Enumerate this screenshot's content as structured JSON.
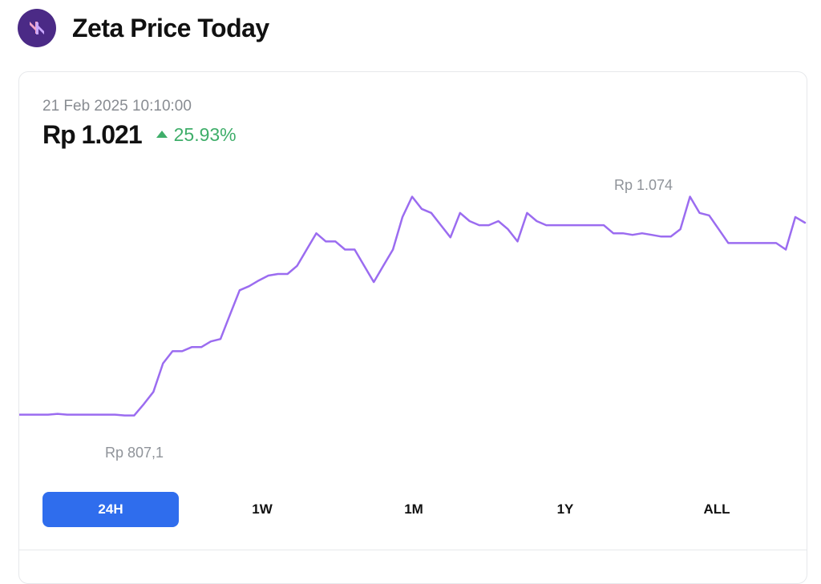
{
  "header": {
    "title": "Zeta Price Today",
    "logo_icon": "zeta-logo-icon",
    "logo_color": "#4b2a86"
  },
  "price_panel": {
    "timestamp": "21 Feb 2025 10:10:00",
    "price": "Rp 1.021",
    "change": "25.93%",
    "change_direction": "up",
    "change_color": "#3fae6a"
  },
  "chart_data": {
    "type": "line",
    "line_color": "#9b6cf0",
    "high_label": "Rp 1.074",
    "low_label": "Rp 807,1",
    "ylim": [
      780,
      1110
    ],
    "values": [
      807,
      807,
      807,
      807,
      808,
      807,
      807,
      807,
      807,
      807,
      807,
      806,
      806,
      820,
      835,
      870,
      885,
      885,
      890,
      890,
      897,
      900,
      930,
      960,
      965,
      972,
      978,
      980,
      980,
      990,
      1010,
      1030,
      1020,
      1020,
      1010,
      1010,
      990,
      970,
      990,
      1010,
      1050,
      1075,
      1060,
      1055,
      1040,
      1025,
      1055,
      1045,
      1040,
      1040,
      1045,
      1035,
      1020,
      1055,
      1045,
      1040,
      1040,
      1040,
      1040,
      1040,
      1040,
      1040,
      1030,
      1030,
      1028,
      1030,
      1028,
      1026,
      1026,
      1035,
      1075,
      1055,
      1052,
      1035,
      1018,
      1018,
      1018,
      1018,
      1018,
      1018,
      1010,
      1050,
      1043
    ],
    "timeframes": [
      "24H",
      "1W",
      "1M",
      "1Y",
      "ALL"
    ],
    "selected_timeframe": "24H",
    "accent_color": "#2f6ded"
  }
}
